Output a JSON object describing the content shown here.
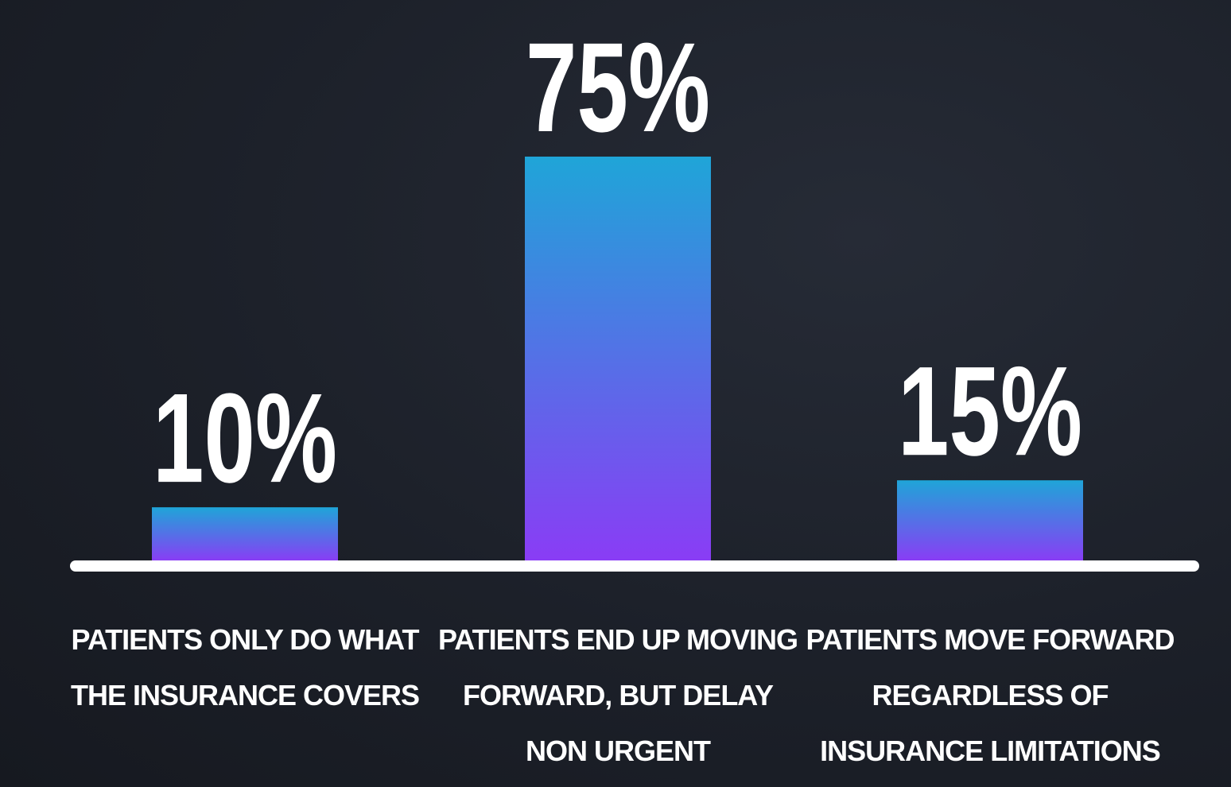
{
  "chart_data": {
    "type": "bar",
    "categories": [
      "PATIENTS ONLY DO WHAT THE INSURANCE COVERS",
      "PATIENTS END UP MOVING FORWARD, BUT DELAY NON URGENT",
      "PATIENTS MOVE FORWARD REGARDLESS OF INSURANCE LIMITATIONS"
    ],
    "values": [
      10,
      75,
      15
    ],
    "value_labels": [
      "10%",
      "75%",
      "15%"
    ],
    "color": [
      "#1fa5d8",
      "#8a3cf5"
    ]
  }
}
